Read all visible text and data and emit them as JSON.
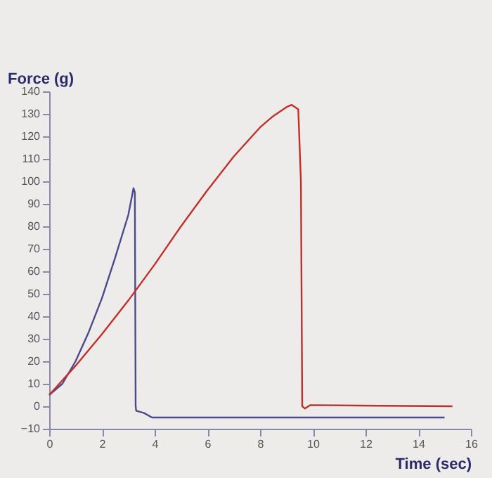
{
  "chart_data": {
    "type": "line",
    "xlabel": "Time (sec)",
    "ylabel": "Force (g)",
    "xlim": [
      0,
      16
    ],
    "xticks": [
      0,
      2,
      4,
      6,
      8,
      10,
      12,
      14,
      16
    ],
    "ylim": [
      -10,
      140
    ],
    "yticks": [
      -10,
      0,
      10,
      20,
      30,
      40,
      50,
      60,
      70,
      80,
      90,
      100,
      110,
      120,
      130,
      140
    ],
    "grid": false,
    "marker": "none",
    "line_style": "solid",
    "series": [
      {
        "color": "#4a4a8c",
        "x": [
          0,
          0.5,
          1,
          1.5,
          2,
          2.5,
          3,
          3.2,
          3.25,
          3.28,
          3.3,
          3.6,
          3.9,
          15
        ],
        "values": [
          5,
          10,
          20,
          33,
          48,
          66,
          85,
          97,
          95,
          0,
          -2,
          -3,
          -5,
          -5
        ]
      },
      {
        "color": "#c0302a",
        "x": [
          0,
          1,
          2,
          3,
          4,
          5,
          6,
          7,
          8,
          8.5,
          9,
          9.2,
          9.45,
          9.55,
          9.6,
          9.7,
          9.9,
          15.3
        ],
        "values": [
          5,
          18,
          32,
          47,
          63,
          80,
          96,
          111,
          124,
          129,
          133,
          134,
          132,
          100,
          0,
          -1,
          0.5,
          0
        ]
      }
    ]
  }
}
